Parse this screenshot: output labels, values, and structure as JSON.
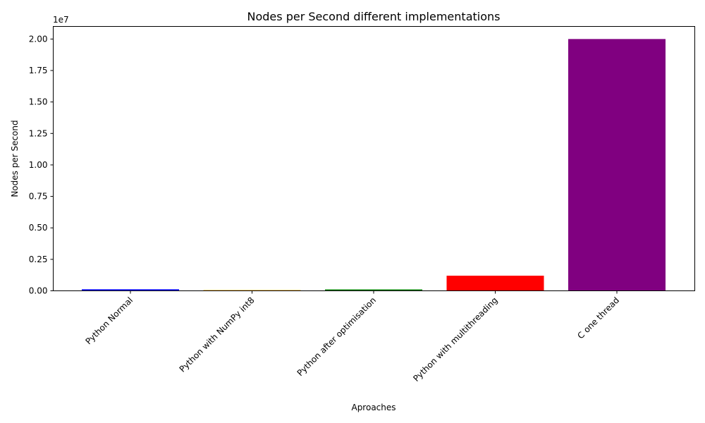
{
  "chart_data": {
    "type": "bar",
    "title": "Nodes per Second different implementations",
    "xlabel": "Aproaches",
    "ylabel": "Nodes per Second",
    "y_scale_label": "1e7",
    "categories": [
      "Python Normal",
      "Python with NumPy int8",
      "Python after optimisation",
      "Python with multithreading",
      "C one thread"
    ],
    "values": [
      120000,
      60000,
      110000,
      1200000,
      20000000
    ],
    "colors": [
      "#0000ff",
      "#ffa500",
      "#008000",
      "#ff0000",
      "#800080"
    ],
    "ylim": [
      0,
      21000000
    ],
    "y_ticks": [
      0,
      2500000,
      5000000,
      7500000,
      10000000,
      12500000,
      15000000,
      17500000,
      20000000
    ],
    "y_tick_labels": [
      "0.00",
      "0.25",
      "0.50",
      "0.75",
      "1.00",
      "1.25",
      "1.50",
      "1.75",
      "2.00"
    ],
    "x_tick_rotation_deg": -45,
    "grid": false,
    "legend": "none"
  }
}
